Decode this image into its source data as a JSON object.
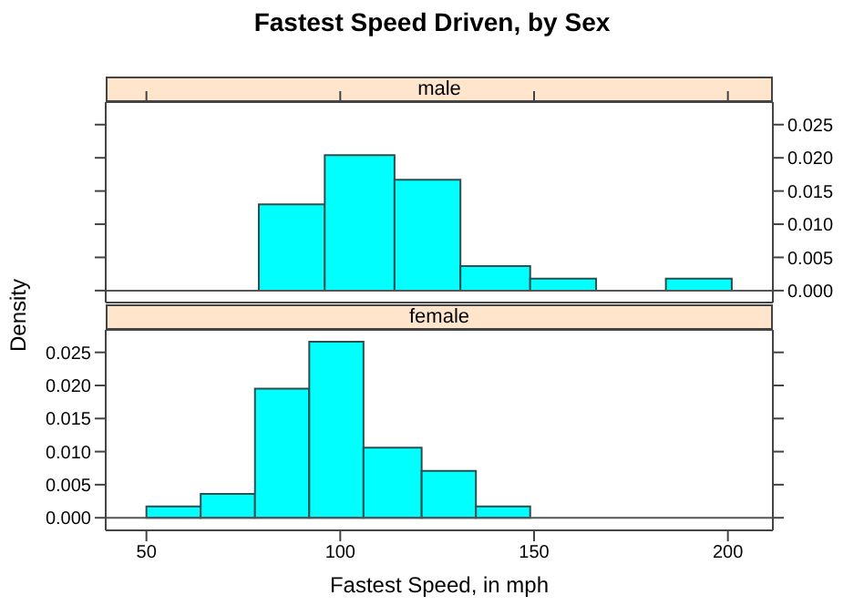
{
  "chart_data": [
    {
      "type": "histogram",
      "title": "Fastest Speed Driven, by Sex",
      "subtitle": "male",
      "bins": [
        79,
        96,
        114,
        131,
        149,
        166,
        184,
        201
      ],
      "values": [
        0.013,
        0.0204,
        0.0167,
        0.0037,
        0.0018,
        0,
        0.0018
      ],
      "color": "#00ffff",
      "xlim": [
        39.5,
        211.6
      ],
      "ylim": [
        -0.0018,
        0.0284
      ],
      "xticks": [
        50,
        100,
        150,
        200
      ],
      "yticks": [
        {
          "value": 0,
          "label": "0.000"
        },
        {
          "value": 0.005,
          "label": "0.005"
        },
        {
          "value": 0.01,
          "label": "0.010"
        },
        {
          "value": 0.015,
          "label": "0.015"
        },
        {
          "value": 0.02,
          "label": "0.020"
        },
        {
          "value": 0.025,
          "label": "0.025"
        }
      ],
      "tick_labels": "y",
      "ref_lines": [
        {
          "axis": "y",
          "value": 0
        }
      ]
    },
    {
      "type": "histogram",
      "subtitle": "female",
      "xlabel": "Fastest Speed, in mph",
      "ylabel": "Density",
      "bins": [
        50,
        64,
        78,
        92,
        106,
        121,
        135,
        149
      ],
      "values": [
        0.0017,
        0.0036,
        0.0195,
        0.0266,
        0.0106,
        0.0071,
        0.0017
      ],
      "color": "#00ffff",
      "xlim": [
        39.5,
        211.6
      ],
      "ylim": [
        -0.0019,
        0.0284
      ],
      "xticks": [
        50,
        100,
        150,
        200
      ],
      "yticks": [
        {
          "value": 0,
          "label": "0.000"
        },
        {
          "value": 0.005,
          "label": "0.005"
        },
        {
          "value": 0.01,
          "label": "0.010"
        },
        {
          "value": 0.015,
          "label": "0.015"
        },
        {
          "value": 0.02,
          "label": "0.020"
        },
        {
          "value": 0.025,
          "label": "0.025"
        }
      ],
      "ref_lines": [
        {
          "axis": "y",
          "value": 0
        }
      ]
    }
  ]
}
